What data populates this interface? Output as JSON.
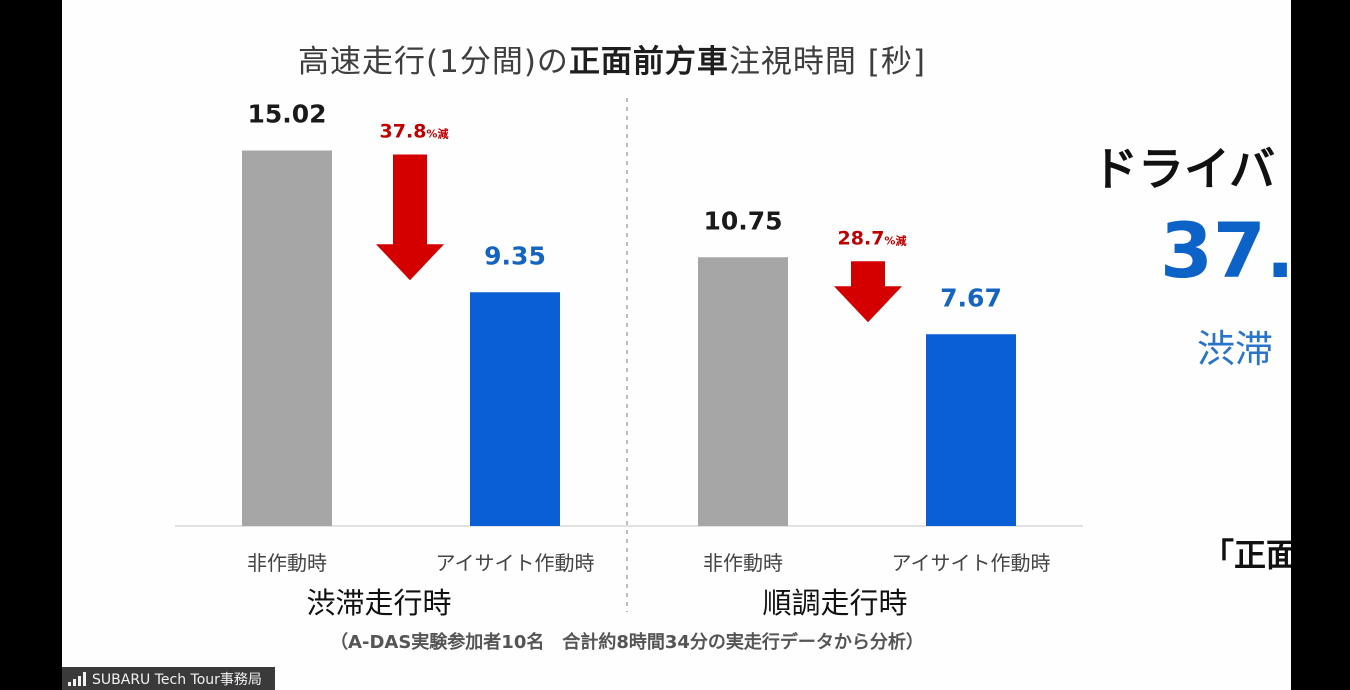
{
  "slide": {
    "title_normal_1": "高速走行(1分間)の",
    "title_bold": "正面前方車",
    "title_normal_2": "注視時間 [秒]",
    "footnote": "（A-DAS実験参加者10名　合計約8時間34分の実走行データから分析）",
    "side": {
      "heading": "ドライバ",
      "percent": "37.",
      "sub": "渋滞",
      "bottom": "「正面"
    }
  },
  "participant": {
    "name": "SUBARU Tech Tour事務局",
    "icon": "signal-bars-icon"
  },
  "chart_data": {
    "type": "bar",
    "groups": [
      "渋滞走行時",
      "順調走行時"
    ],
    "categories": [
      "非作動時",
      "アイサイト作動時"
    ],
    "series": [
      {
        "values": [
          15.02,
          10.75
        ],
        "color": "#a6a6a6",
        "label_color": "#1a1a1a"
      },
      {
        "values": [
          9.35,
          7.67
        ],
        "color": "#0a5fd6",
        "label_color": "#1565c0"
      }
    ],
    "value_labels": [
      [
        "15.02",
        "9.35"
      ],
      [
        "10.75",
        "7.67"
      ]
    ],
    "reductions": [
      {
        "value": "37.8",
        "unit": "%減"
      },
      {
        "value": "28.7",
        "unit": "%減"
      }
    ],
    "arrow_color": "#d40000",
    "ylim": [
      0,
      16
    ]
  }
}
